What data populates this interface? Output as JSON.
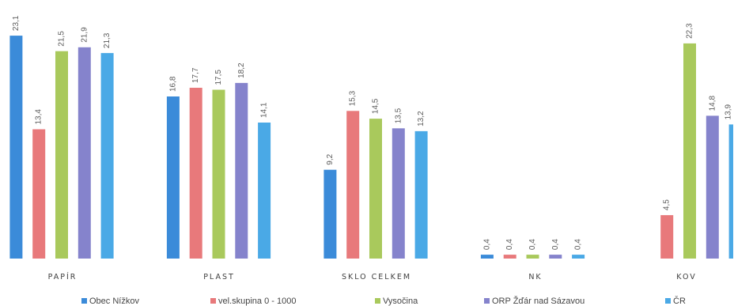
{
  "chart_data": {
    "type": "bar",
    "categories": [
      "PAPÍR",
      "PLAST",
      "SKLO CELKEM",
      "NK",
      "KOV"
    ],
    "series": [
      {
        "name": "Obec Nížkov",
        "color": "#3b8bd9",
        "values": [
          23.1,
          16.8,
          9.2,
          0.4,
          null
        ]
      },
      {
        "name": "vel.skupina 0 - 1000",
        "color": "#e8797b",
        "values": [
          13.4,
          17.7,
          15.3,
          0.4,
          4.5
        ]
      },
      {
        "name": "Vysočina",
        "color": "#a9c95c",
        "values": [
          21.5,
          17.5,
          14.5,
          0.4,
          22.3
        ]
      },
      {
        "name": "ORP Žďár nad Sázavou",
        "color": "#8583cc",
        "values": [
          21.9,
          18.2,
          13.5,
          0.4,
          14.8
        ]
      },
      {
        "name": "ČR",
        "color": "#4aa9e6",
        "values": [
          21.3,
          14.1,
          13.2,
          0.4,
          13.9
        ]
      }
    ],
    "ylim": [
      0,
      26.8
    ],
    "grid": false,
    "legend": "bottom",
    "data_labels": true
  }
}
